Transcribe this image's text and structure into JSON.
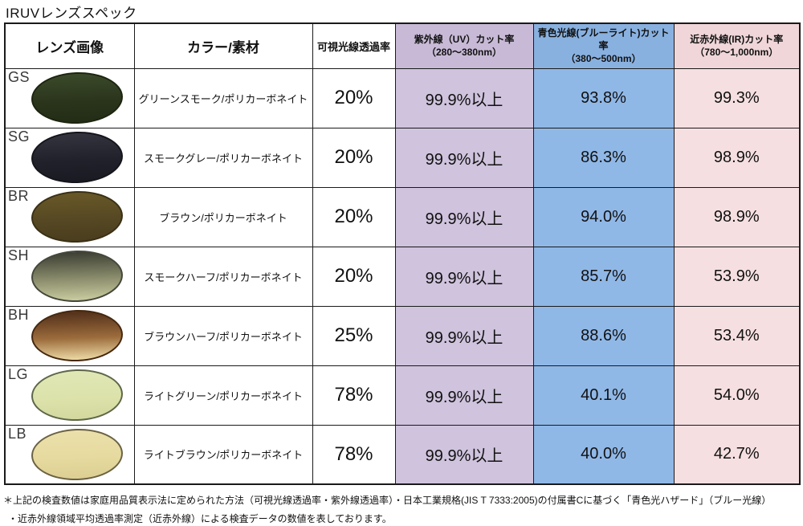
{
  "title": "IRUVレンズスペック",
  "colors": {
    "uv_header": "#c8bad6",
    "uv_body": "#cfc3dd",
    "blue_header": "#89b1e0",
    "blue_body": "#90b8e7",
    "ir_header": "#f0d6d9",
    "ir_body": "#f5dfe1"
  },
  "table": {
    "headers": {
      "lens_image": "レンズ画像",
      "color_material": "カラー/素材",
      "visible_light": "可視光線透過率",
      "uv_line1": "紫外線（UV）カット率",
      "uv_line2": "（280～380nm）",
      "blue_line1": "青色光線(ブルーライト)カット率",
      "blue_line2": "（380～500nm）",
      "ir_line1": "近赤外線(IR)カット率",
      "ir_line2": "（780～1,000nm）"
    },
    "rows": [
      {
        "code": "GS",
        "color_material": "グリーンスモーク/ポリカーボネイト",
        "visible": "20%",
        "uv": "99.9%以上",
        "blue": "93.8%",
        "ir": "99.3%",
        "lens": {
          "top": "#3b4a2a",
          "mid": "#2b351c",
          "bottom": "#232c15",
          "outline": "#1d2510"
        }
      },
      {
        "code": "SG",
        "color_material": "スモークグレー/ポリカーボネイト",
        "visible": "20%",
        "uv": "99.9%以上",
        "blue": "86.3%",
        "ir": "98.9%",
        "lens": {
          "top": "#34343f",
          "mid": "#21212b",
          "bottom": "#1a1a23",
          "outline": "#15151d"
        }
      },
      {
        "code": "BR",
        "color_material": "ブラウン/ポリカーボネイト",
        "visible": "20%",
        "uv": "99.9%以上",
        "blue": "94.0%",
        "ir": "98.9%",
        "lens": {
          "top": "#685828",
          "mid": "#564823",
          "bottom": "#4a3d1e",
          "outline": "#3b3015"
        }
      },
      {
        "code": "SH",
        "color_material": "スモークハーフ/ポリカーボネイト",
        "visible": "20%",
        "uv": "99.9%以上",
        "blue": "85.7%",
        "ir": "53.9%",
        "lens": {
          "top": "#3d3f34",
          "mid": "#8a8c6c",
          "bottom": "#c9cb9f",
          "outline": "#45473b"
        }
      },
      {
        "code": "BH",
        "color_material": "ブラウンハーフ/ポリカーボネイト",
        "visible": "25%",
        "uv": "99.9%以上",
        "blue": "88.6%",
        "ir": "53.4%",
        "lens": {
          "top": "#52301a",
          "mid": "#9c6c3c",
          "bottom": "#ecd9a4",
          "outline": "#46280f"
        }
      },
      {
        "code": "LG",
        "color_material": "ライトグリーン/ポリカーボネイト",
        "visible": "78%",
        "uv": "99.9%以上",
        "blue": "40.1%",
        "ir": "54.0%",
        "lens": {
          "top": "#e1e7b5",
          "mid": "#dce2aa",
          "bottom": "#d2d89e",
          "outline": "#5d6748"
        }
      },
      {
        "code": "LB",
        "color_material": "ライトブラウン/ポリカーボネイト",
        "visible": "78%",
        "uv": "99.9%以上",
        "blue": "40.0%",
        "ir": "42.7%",
        "lens": {
          "top": "#ebe0aa",
          "mid": "#e6daa0",
          "bottom": "#ddcf92",
          "outline": "#6b6243"
        }
      }
    ]
  },
  "footnotes": [
    "＊上記の検査数値は家庭用品質表示法に定められた方法（可視光線透過率・紫外線透過率）・日本工業規格(JIS T 7333:2005)の付属書Cに基づく「青色光ハザード」（ブルー光線）",
    "・近赤外線領域平均透過率測定（近赤外線）による検査データの数値を表しております。"
  ]
}
